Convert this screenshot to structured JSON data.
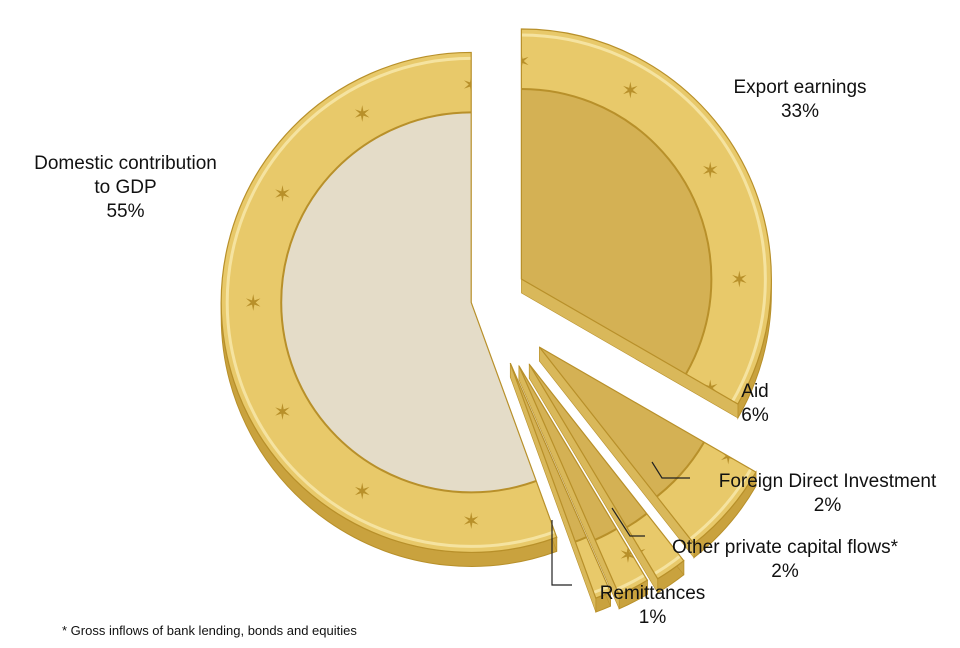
{
  "chart_data": {
    "type": "pie",
    "categories": [
      "Domestic contribution to GDP",
      "Export earnings",
      "Aid",
      "Foreign Direct Investment",
      "Other private capital flows*",
      "Remittances"
    ],
    "values": [
      55,
      33,
      6,
      2,
      2,
      1
    ],
    "labels": [
      {
        "line1": "Domestic contribution",
        "line2": "to GDP",
        "pct": "55%"
      },
      {
        "line1": "Export earnings",
        "line2": "",
        "pct": "33%"
      },
      {
        "line1": "Aid",
        "line2": "",
        "pct": "6%"
      },
      {
        "line1": "Foreign Direct Investment",
        "line2": "",
        "pct": "2%"
      },
      {
        "line1": "Other private capital flows*",
        "line2": "",
        "pct": "2%"
      },
      {
        "line1": "Remittances",
        "line2": "",
        "pct": "1%"
      }
    ],
    "footnote": "* Gross inflows of bank lending, bonds and equities",
    "colors": {
      "ring": "#e8c96a",
      "ring_dark": "#b8902a",
      "center_big": "#e4dcc8",
      "center_gold": "#d4b154",
      "edge": "#c9a23e"
    }
  }
}
